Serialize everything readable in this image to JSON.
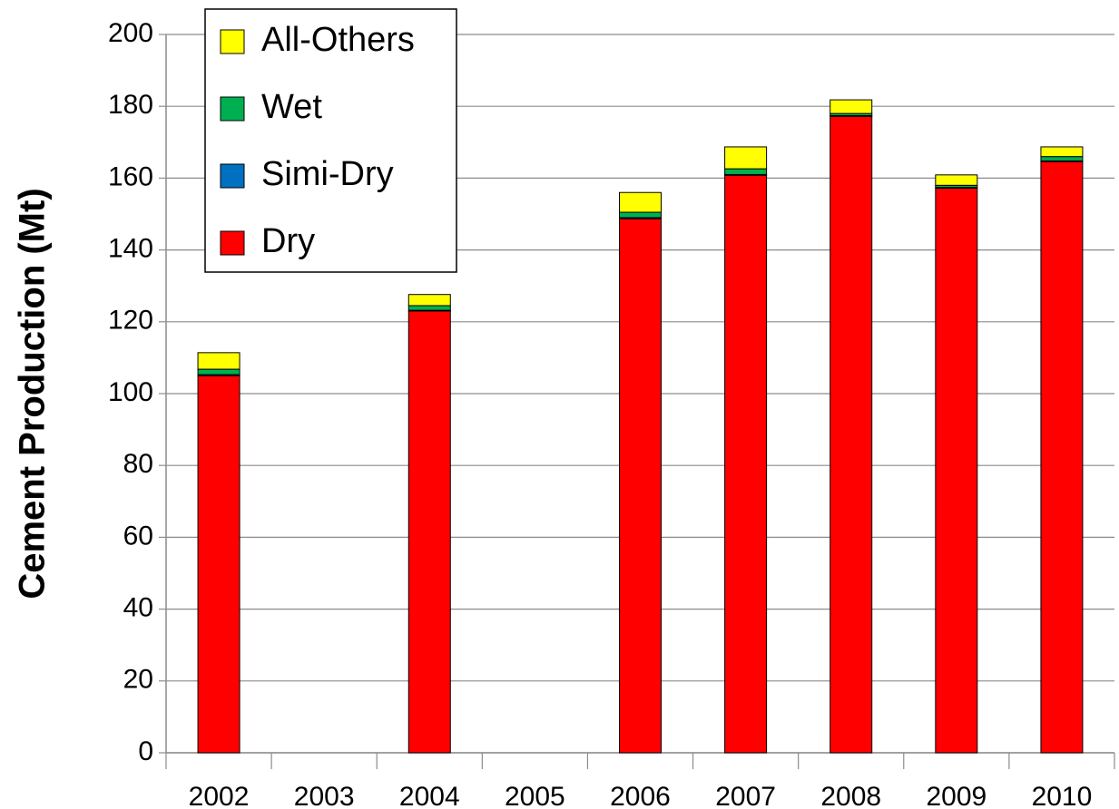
{
  "chart_data": {
    "type": "stacked_bar",
    "y_label": "Cement Production (Mt)",
    "categories": [
      "2002",
      "2003",
      "2004",
      "2005",
      "2006",
      "2007",
      "2008",
      "2009",
      "2010"
    ],
    "series": [
      {
        "name": "Dry",
        "color": "#ff0000",
        "values": [
          105,
          null,
          123,
          null,
          148.7,
          160.8,
          177.2,
          157.2,
          164.6
        ]
      },
      {
        "name": "Simi-Dry",
        "color": "#0070c0",
        "values": [
          0.3,
          null,
          0.2,
          null,
          0.3,
          0.2,
          0.2,
          0.2,
          0.2
        ]
      },
      {
        "name": "Wet",
        "color": "#00b050",
        "values": [
          1.5,
          null,
          1.3,
          null,
          1.5,
          1.6,
          0.6,
          0.6,
          1.2
        ]
      },
      {
        "name": "All-Others",
        "color": "#ffff00",
        "values": [
          4.6,
          null,
          3.1,
          null,
          5.5,
          6.1,
          3.8,
          2.9,
          2.7
        ]
      }
    ],
    "ylim": [
      0,
      200
    ],
    "yticks": [
      0,
      20,
      40,
      60,
      80,
      100,
      120,
      140,
      160,
      180,
      200
    ],
    "grid": true,
    "legend": "upper-left"
  }
}
